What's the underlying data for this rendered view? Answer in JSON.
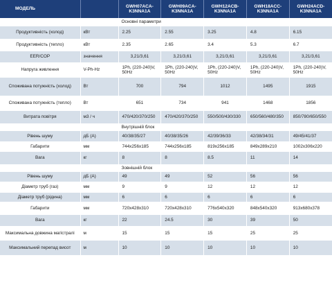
{
  "header": {
    "model_label": "МОДЕЛЬ",
    "models": [
      "GWH07ACA-K3NNA1A",
      "GWH09ACA-K3NNA1A",
      "GWH12ACB-K3NNA1A",
      "GWH18ACC-K3NNA1A",
      "GWH24ACD-K3NNA1A"
    ]
  },
  "sections": {
    "main": "Основні параметри",
    "indoor": "Внутрішній блок",
    "outdoor": "Зовнішній блок"
  },
  "rows": {
    "cool_cap": {
      "label": "Продуктивність (холод)",
      "unit": "кВт",
      "values": [
        "2.25",
        "2.55",
        "3.25",
        "4.8",
        "6.15"
      ]
    },
    "heat_cap": {
      "label": "Продуктивність (тепло)",
      "unit": "кВт",
      "values": [
        "2.35",
        "2.65",
        "3.4",
        "5.3",
        "6.7"
      ]
    },
    "eer": {
      "label": "EER/COP",
      "unit": "значення",
      "values": [
        "3,21/3,61",
        "3,21/3,61",
        "3,21/3,61",
        "3,21/3,61",
        "3,21/3,61"
      ]
    },
    "voltage": {
      "label": "Напруга живлення",
      "unit": "V-Ph-Hz",
      "values": [
        "1Ph, (220-240)V, 50Hz",
        "1Ph, (220-240)V, 50Hz",
        "1Ph, (220-240)V, 50Hz",
        "1Ph, (220-240)V, 50Hz",
        "1Ph, (220-240)V, 50Hz"
      ]
    },
    "power_cool": {
      "label": "Споживана потужність (холод)",
      "unit": "Вт",
      "values": [
        "700",
        "794",
        "1012",
        "1495",
        "1915"
      ]
    },
    "power_heat": {
      "label": "Споживана потужність (тепло)",
      "unit": "Вт",
      "values": [
        "651",
        "734",
        "941",
        "1468",
        "1856"
      ]
    },
    "airflow": {
      "label": "Витрата повітря",
      "unit": "м3 / ч",
      "values": [
        "470/420/370/250",
        "470/420/370/250",
        "550/500/430/330",
        "650/560/480/350",
        "850/780/650/550"
      ]
    },
    "in_noise": {
      "label": "Рівень шуму",
      "unit": "дБ (А)",
      "values": [
        "40/38/35/27",
        "40/38/35/26",
        "42/39/36/33",
        "42/38/34/31",
        "49/45/41/37"
      ]
    },
    "in_dims": {
      "label": "Габарити",
      "unit": "мм",
      "values": [
        "744x256x185",
        "744x256x185",
        "819x256x185",
        "849x289x210",
        "1002x306x220"
      ]
    },
    "in_weight": {
      "label": "Вага",
      "unit": "кг",
      "values": [
        "8",
        "8",
        "8.5",
        "11",
        "14"
      ]
    },
    "out_noise": {
      "label": "Рівень шуму",
      "unit": "дБ (А)",
      "values": [
        "49",
        "49",
        "52",
        "56",
        "56"
      ]
    },
    "pipe_gas": {
      "label": "Діаметр труб (газ)",
      "unit": "мм",
      "values": [
        "9",
        "9",
        "12",
        "12",
        "12"
      ]
    },
    "pipe_liq": {
      "label": "Діаметр труб (рідина)",
      "unit": "мм",
      "values": [
        "6",
        "6",
        "6",
        "6",
        "6"
      ]
    },
    "out_dims": {
      "label": "Габарити",
      "unit": "мм",
      "values": [
        "720x428x310",
        "720x428x310",
        "776x540x320",
        "848x540x320",
        "913x680x378"
      ]
    },
    "out_weight": {
      "label": "Вага",
      "unit": "кг",
      "values": [
        "22",
        "24.5",
        "30",
        "39",
        "50"
      ]
    },
    "max_len": {
      "label": "Максимальна довжина магістралі",
      "unit": "м",
      "values": [
        "15",
        "15",
        "15",
        "25",
        "25"
      ]
    },
    "max_height": {
      "label": "Максимальний перепад висот",
      "unit": "м",
      "values": [
        "10",
        "10",
        "10",
        "10",
        "10"
      ]
    }
  }
}
